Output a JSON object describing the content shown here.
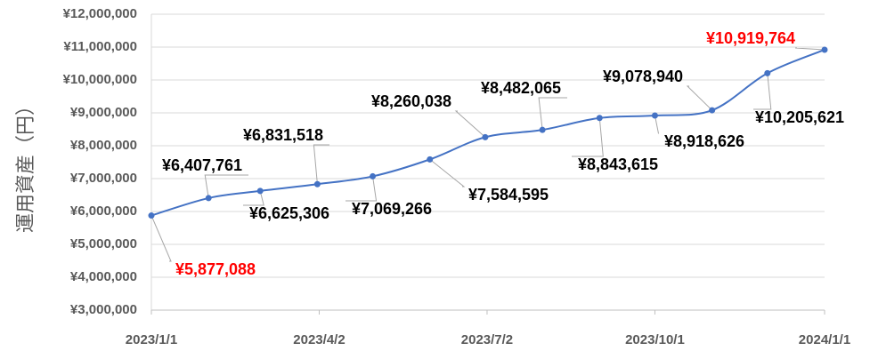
{
  "chart_data": {
    "type": "line",
    "y_label": "運用資産（円）",
    "x": [
      "2023/1/1",
      "2023/2/1",
      "2023/3/1",
      "2023/4/1",
      "2023/5/1",
      "2023/6/1",
      "2023/7/1",
      "2023/8/1",
      "2023/9/1",
      "2023/10/1",
      "2023/11/1",
      "2023/12/1",
      "2024/1/1"
    ],
    "xlim": [
      "2023/1/1",
      "2024/1/1"
    ],
    "xticks": [
      "2023/1/1",
      "2023/4/2",
      "2023/7/2",
      "2023/10/1",
      "2024/1/1"
    ],
    "series": [
      {
        "color": "#4472c4",
        "values": [
          5877088,
          6407761,
          6625306,
          6831518,
          7069266,
          7584595,
          8260038,
          8482065,
          8843615,
          8918626,
          9078940,
          10205621,
          10919764
        ],
        "value_labels": [
          "¥5,877,088",
          "¥6,407,761",
          "¥6,625,306",
          "¥6,831,518",
          "¥7,069,266",
          "¥7,584,595",
          "¥8,260,038",
          "¥8,482,065",
          "¥8,843,615",
          "¥8,918,626",
          "¥9,078,940",
          "¥10,205,621",
          "¥10,919,764"
        ],
        "value_label_colors": [
          "#ff0000",
          "#000000",
          "#000000",
          "#000000",
          "#000000",
          "#000000",
          "#000000",
          "#000000",
          "#000000",
          "#000000",
          "#000000",
          "#000000",
          "#ff0000"
        ]
      }
    ],
    "ylim": [
      3000000,
      12000000
    ],
    "yticks": [
      {
        "value": 3000000,
        "label": "¥3,000,000"
      },
      {
        "value": 4000000,
        "label": "¥4,000,000"
      },
      {
        "value": 5000000,
        "label": "¥5,000,000"
      },
      {
        "value": 6000000,
        "label": "¥6,000,000"
      },
      {
        "value": 7000000,
        "label": "¥7,000,000"
      },
      {
        "value": 8000000,
        "label": "¥8,000,000"
      },
      {
        "value": 9000000,
        "label": "¥9,000,000"
      },
      {
        "value": 10000000,
        "label": "¥10,000,000"
      },
      {
        "value": 11000000,
        "label": "¥11,000,000"
      },
      {
        "value": 12000000,
        "label": "¥12,000,000"
      }
    ],
    "grid": true
  }
}
